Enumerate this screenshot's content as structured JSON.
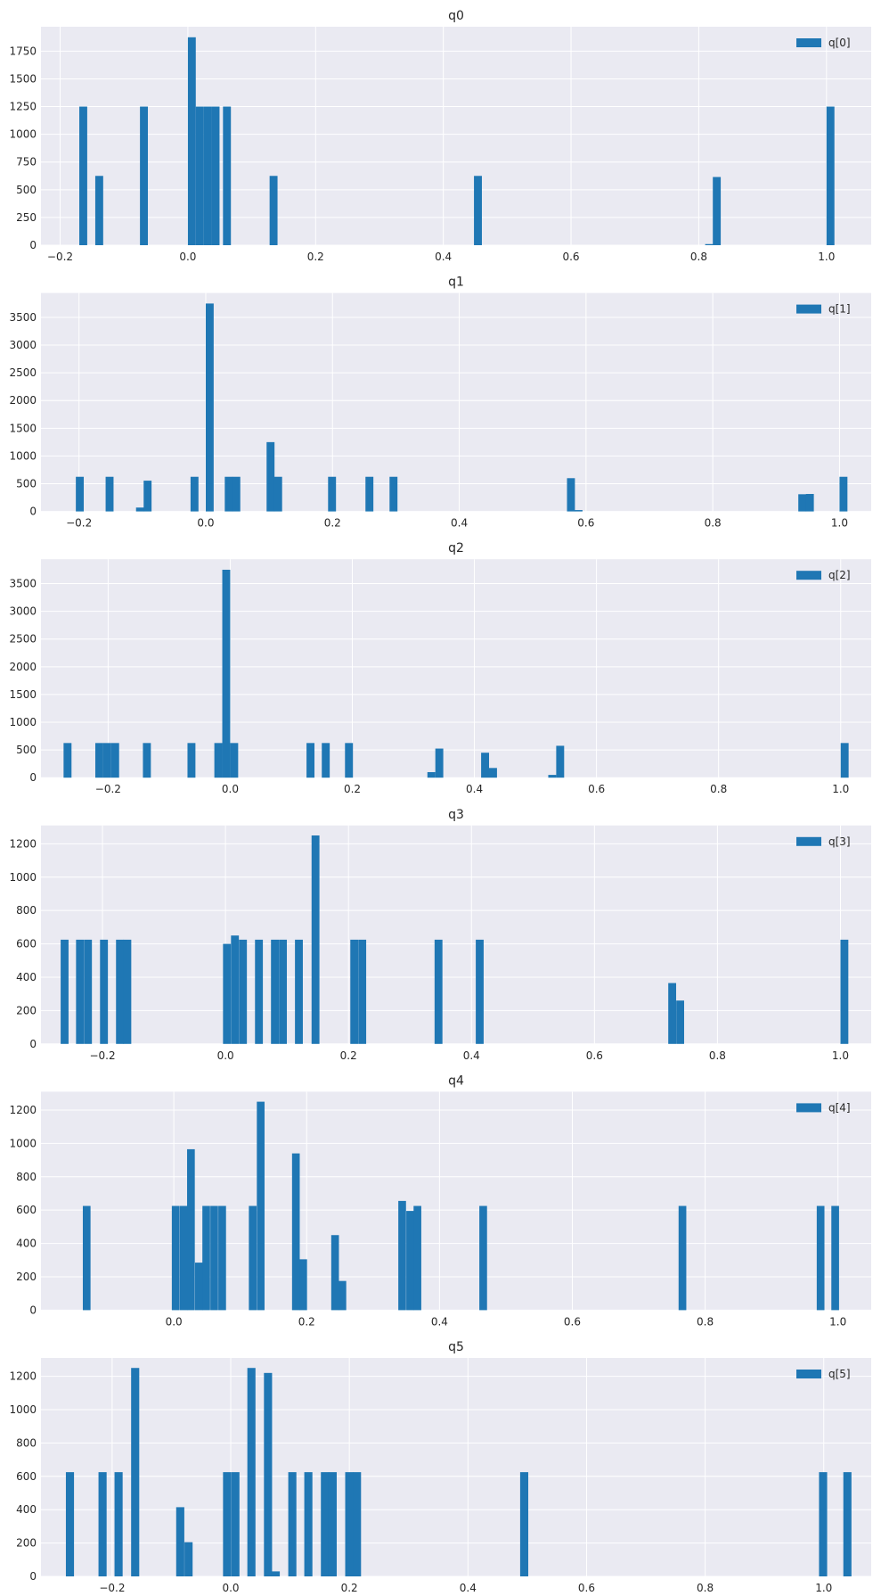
{
  "chart_data": [
    {
      "type": "histogram",
      "title": "q0",
      "xlim": [
        -0.23,
        1.07
      ],
      "ylim": [
        0,
        1970
      ],
      "xticks": [
        -0.2,
        0.0,
        0.2,
        0.4,
        0.6,
        0.8,
        1.0
      ],
      "xtick_labels": [
        "−0.2",
        "0.0",
        "0.2",
        "0.4",
        "0.6",
        "0.8",
        "1.0"
      ],
      "yticks": [
        0,
        250,
        500,
        750,
        1000,
        1250,
        1500,
        1750
      ],
      "legend": "q[0]",
      "legend_position": "top-right",
      "grid": true,
      "bin_width": 0.0124,
      "bins": [
        {
          "x": -0.17,
          "count": 1250
        },
        {
          "x": -0.145,
          "count": 625
        },
        {
          "x": -0.075,
          "count": 1250
        },
        {
          "x": 0.0,
          "count": 1875
        },
        {
          "x": 0.0124,
          "count": 1250
        },
        {
          "x": 0.0248,
          "count": 1250
        },
        {
          "x": 0.0372,
          "count": 1250
        },
        {
          "x": 0.055,
          "count": 1250
        },
        {
          "x": 0.128,
          "count": 625
        },
        {
          "x": 0.448,
          "count": 625
        },
        {
          "x": 0.81,
          "count": 10
        },
        {
          "x": 0.822,
          "count": 615
        },
        {
          "x": 1.0,
          "count": 1250
        }
      ]
    },
    {
      "type": "histogram",
      "title": "q1",
      "xlim": [
        -0.26,
        1.05
      ],
      "ylim": [
        0,
        3940
      ],
      "xticks": [
        -0.2,
        0.0,
        0.2,
        0.4,
        0.6,
        0.8,
        1.0
      ],
      "xtick_labels": [
        "−0.2",
        "0.0",
        "0.2",
        "0.4",
        "0.6",
        "0.8",
        "1.0"
      ],
      "yticks": [
        0,
        500,
        1000,
        1500,
        2000,
        2500,
        3000,
        3500
      ],
      "legend": "q[1]",
      "legend_position": "top-right",
      "grid": true,
      "bin_width": 0.0125,
      "bins": [
        {
          "x": -0.205,
          "count": 625
        },
        {
          "x": -0.158,
          "count": 625
        },
        {
          "x": -0.11,
          "count": 70
        },
        {
          "x": -0.098,
          "count": 555
        },
        {
          "x": -0.024,
          "count": 625
        },
        {
          "x": 0.0,
          "count": 3750
        },
        {
          "x": 0.03,
          "count": 625
        },
        {
          "x": 0.042,
          "count": 625
        },
        {
          "x": 0.096,
          "count": 1250
        },
        {
          "x": 0.108,
          "count": 625
        },
        {
          "x": 0.193,
          "count": 625
        },
        {
          "x": 0.252,
          "count": 625
        },
        {
          "x": 0.29,
          "count": 625
        },
        {
          "x": 0.57,
          "count": 600
        },
        {
          "x": 0.582,
          "count": 25
        },
        {
          "x": 0.935,
          "count": 310
        },
        {
          "x": 0.947,
          "count": 315
        },
        {
          "x": 1.0,
          "count": 625
        }
      ]
    },
    {
      "type": "histogram",
      "title": "q2",
      "xlim": [
        -0.31,
        1.05
      ],
      "ylim": [
        0,
        3940
      ],
      "xticks": [
        -0.2,
        0.0,
        0.2,
        0.4,
        0.6,
        0.8,
        1.0
      ],
      "xtick_labels": [
        "−0.2",
        "0.0",
        "0.2",
        "0.4",
        "0.6",
        "0.8",
        "1.0"
      ],
      "yticks": [
        0,
        500,
        1000,
        1500,
        2000,
        2500,
        3000,
        3500
      ],
      "legend": "q[2]",
      "legend_position": "top-right",
      "grid": true,
      "bin_width": 0.013,
      "bins": [
        {
          "x": -0.273,
          "count": 625
        },
        {
          "x": -0.221,
          "count": 625
        },
        {
          "x": -0.208,
          "count": 625
        },
        {
          "x": -0.195,
          "count": 625
        },
        {
          "x": -0.143,
          "count": 625
        },
        {
          "x": -0.07,
          "count": 625
        },
        {
          "x": -0.026,
          "count": 625
        },
        {
          "x": -0.013,
          "count": 3750
        },
        {
          "x": 0.0,
          "count": 625
        },
        {
          "x": 0.125,
          "count": 625
        },
        {
          "x": 0.15,
          "count": 625
        },
        {
          "x": 0.188,
          "count": 625
        },
        {
          "x": 0.323,
          "count": 100
        },
        {
          "x": 0.336,
          "count": 525
        },
        {
          "x": 0.411,
          "count": 450
        },
        {
          "x": 0.424,
          "count": 175
        },
        {
          "x": 0.521,
          "count": 50
        },
        {
          "x": 0.534,
          "count": 575
        },
        {
          "x": 1.0,
          "count": 625
        }
      ]
    },
    {
      "type": "histogram",
      "title": "q3",
      "xlim": [
        -0.3,
        1.05
      ],
      "ylim": [
        0,
        1310
      ],
      "xticks": [
        -0.2,
        0.0,
        0.2,
        0.4,
        0.6,
        0.8,
        1.0
      ],
      "xtick_labels": [
        "−0.2",
        "0.0",
        "0.2",
        "0.4",
        "0.6",
        "0.8",
        "1.0"
      ],
      "yticks": [
        0,
        200,
        400,
        600,
        800,
        1000,
        1200
      ],
      "legend": "q[3]",
      "legend_position": "top-right",
      "grid": true,
      "bin_width": 0.0128,
      "bins": [
        {
          "x": -0.268,
          "count": 625
        },
        {
          "x": -0.243,
          "count": 625
        },
        {
          "x": -0.23,
          "count": 625
        },
        {
          "x": -0.204,
          "count": 625
        },
        {
          "x": -0.178,
          "count": 625
        },
        {
          "x": -0.166,
          "count": 625
        },
        {
          "x": -0.004,
          "count": 600
        },
        {
          "x": 0.009,
          "count": 650
        },
        {
          "x": 0.022,
          "count": 625
        },
        {
          "x": 0.048,
          "count": 625
        },
        {
          "x": 0.074,
          "count": 625
        },
        {
          "x": 0.087,
          "count": 625
        },
        {
          "x": 0.113,
          "count": 625
        },
        {
          "x": 0.14,
          "count": 1250
        },
        {
          "x": 0.203,
          "count": 625
        },
        {
          "x": 0.216,
          "count": 625
        },
        {
          "x": 0.34,
          "count": 625
        },
        {
          "x": 0.407,
          "count": 625
        },
        {
          "x": 0.72,
          "count": 365
        },
        {
          "x": 0.733,
          "count": 260
        },
        {
          "x": 1.0,
          "count": 625
        }
      ]
    },
    {
      "type": "histogram",
      "title": "q4",
      "xlim": [
        -0.2,
        1.05
      ],
      "ylim": [
        0,
        1310
      ],
      "xticks": [
        0.0,
        0.2,
        0.4,
        0.6,
        0.8,
        1.0
      ],
      "xtick_labels": [
        "0.0",
        "0.2",
        "0.4",
        "0.6",
        "0.8",
        "1.0"
      ],
      "yticks": [
        0,
        200,
        400,
        600,
        800,
        1000,
        1200
      ],
      "legend": "q[4]",
      "legend_position": "top-right",
      "grid": true,
      "bin_width": 0.0116,
      "bins": [
        {
          "x": -0.137,
          "count": 625
        },
        {
          "x": -0.003,
          "count": 625
        },
        {
          "x": 0.009,
          "count": 625
        },
        {
          "x": 0.02,
          "count": 965
        },
        {
          "x": 0.032,
          "count": 285
        },
        {
          "x": 0.043,
          "count": 625
        },
        {
          "x": 0.055,
          "count": 625
        },
        {
          "x": 0.067,
          "count": 625
        },
        {
          "x": 0.113,
          "count": 625
        },
        {
          "x": 0.125,
          "count": 1250
        },
        {
          "x": 0.178,
          "count": 940
        },
        {
          "x": 0.189,
          "count": 305
        },
        {
          "x": 0.237,
          "count": 450
        },
        {
          "x": 0.248,
          "count": 175
        },
        {
          "x": 0.338,
          "count": 655
        },
        {
          "x": 0.35,
          "count": 595
        },
        {
          "x": 0.361,
          "count": 625
        },
        {
          "x": 0.46,
          "count": 625
        },
        {
          "x": 0.76,
          "count": 625
        },
        {
          "x": 0.968,
          "count": 625
        },
        {
          "x": 0.99,
          "count": 625
        }
      ]
    },
    {
      "type": "histogram",
      "title": "q5",
      "xlim": [
        -0.32,
        1.08
      ],
      "ylim": [
        0,
        1310
      ],
      "xticks": [
        -0.2,
        0.0,
        0.2,
        0.4,
        0.6,
        0.8,
        1.0
      ],
      "xtick_labels": [
        "−0.2",
        "0.0",
        "0.2",
        "0.4",
        "0.6",
        "0.8",
        "1.0"
      ],
      "yticks": [
        0,
        200,
        400,
        600,
        800,
        1000,
        1200
      ],
      "legend": "q[5]",
      "legend_position": "top-right",
      "grid": true,
      "bin_width": 0.0137,
      "bins": [
        {
          "x": -0.278,
          "count": 625
        },
        {
          "x": -0.223,
          "count": 625
        },
        {
          "x": -0.196,
          "count": 625
        },
        {
          "x": -0.168,
          "count": 1250
        },
        {
          "x": -0.092,
          "count": 415
        },
        {
          "x": -0.078,
          "count": 205
        },
        {
          "x": -0.013,
          "count": 625
        },
        {
          "x": 0.001,
          "count": 625
        },
        {
          "x": 0.028,
          "count": 1250
        },
        {
          "x": 0.056,
          "count": 1220
        },
        {
          "x": 0.069,
          "count": 30
        },
        {
          "x": 0.097,
          "count": 625
        },
        {
          "x": 0.124,
          "count": 625
        },
        {
          "x": 0.152,
          "count": 625
        },
        {
          "x": 0.165,
          "count": 625
        },
        {
          "x": 0.193,
          "count": 625
        },
        {
          "x": 0.206,
          "count": 625
        },
        {
          "x": 0.488,
          "count": 625
        },
        {
          "x": 0.992,
          "count": 625
        },
        {
          "x": 1.033,
          "count": 625
        }
      ]
    }
  ],
  "colors": {
    "bar": "#1f77b4",
    "plot_background": "#eaeaf2",
    "grid": "#ffffff",
    "text": "#262626"
  }
}
